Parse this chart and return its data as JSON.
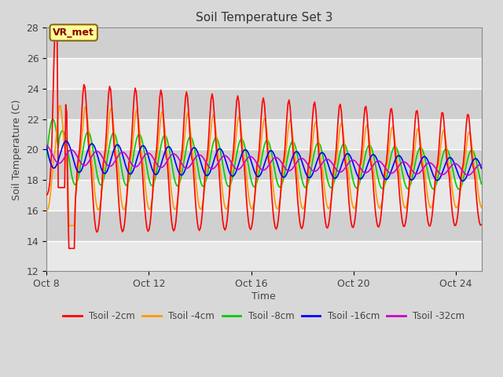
{
  "title": "Soil Temperature Set 3",
  "xlabel": "Time",
  "ylabel": "Soil Temperature (C)",
  "ylim": [
    12,
    28
  ],
  "xtick_labels": [
    "Oct 8",
    "Oct 12",
    "Oct 16",
    "Oct 20",
    "Oct 24"
  ],
  "xtick_positions_days": [
    0,
    4,
    8,
    12,
    16
  ],
  "colors": {
    "Tsoil -2cm": "#ff0000",
    "Tsoil -4cm": "#ff9900",
    "Tsoil -8cm": "#00cc00",
    "Tsoil -16cm": "#0000ff",
    "Tsoil -32cm": "#cc00cc"
  },
  "legend_labels": [
    "Tsoil -2cm",
    "Tsoil -4cm",
    "Tsoil -8cm",
    "Tsoil -16cm",
    "Tsoil -32cm"
  ],
  "annotation_text": "VR_met",
  "fig_bg_color": "#d8d8d8",
  "plot_bg_color": "#d8d8d8",
  "band_colors": [
    "#e8e8e8",
    "#d0d0d0"
  ],
  "grid_line_color": "#ffffff",
  "total_days": 17
}
